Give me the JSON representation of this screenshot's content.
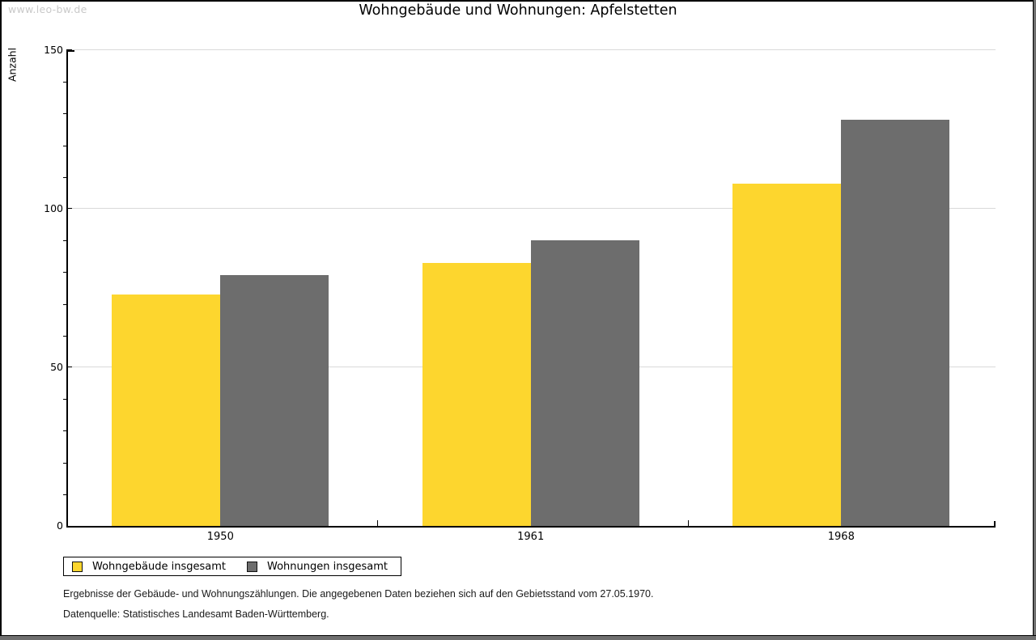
{
  "watermark": "www.leo-bw.de",
  "title": "Wohngebäude und Wohnungen: Apfelstetten",
  "chart_data": {
    "type": "bar",
    "title": "Wohngebäude und Wohnungen: Apfelstetten",
    "xlabel": "",
    "ylabel": "Anzahl",
    "categories": [
      "1950",
      "1961",
      "1968"
    ],
    "series": [
      {
        "name": "Wohngebäude insgesamt",
        "color": "#fdd62e",
        "values": [
          73,
          83,
          108
        ]
      },
      {
        "name": "Wohnungen insgesamt",
        "color": "#6d6d6d",
        "values": [
          79,
          90,
          128
        ]
      }
    ],
    "ylim": [
      0,
      150
    ],
    "yticks_major": [
      0,
      50,
      100,
      150
    ],
    "ytick_minor_step": 10,
    "grid": "horizontal-major",
    "legend_position": "bottom-left",
    "gridline_color": "#d9d9d9"
  },
  "footnotes": [
    "Ergebnisse der Gebäude- und Wohnungszählungen. Die angegebenen Daten beziehen sich auf den Gebietsstand vom 27.05.1970.",
    "Datenquelle: Statistisches Landesamt Baden-Württemberg."
  ]
}
